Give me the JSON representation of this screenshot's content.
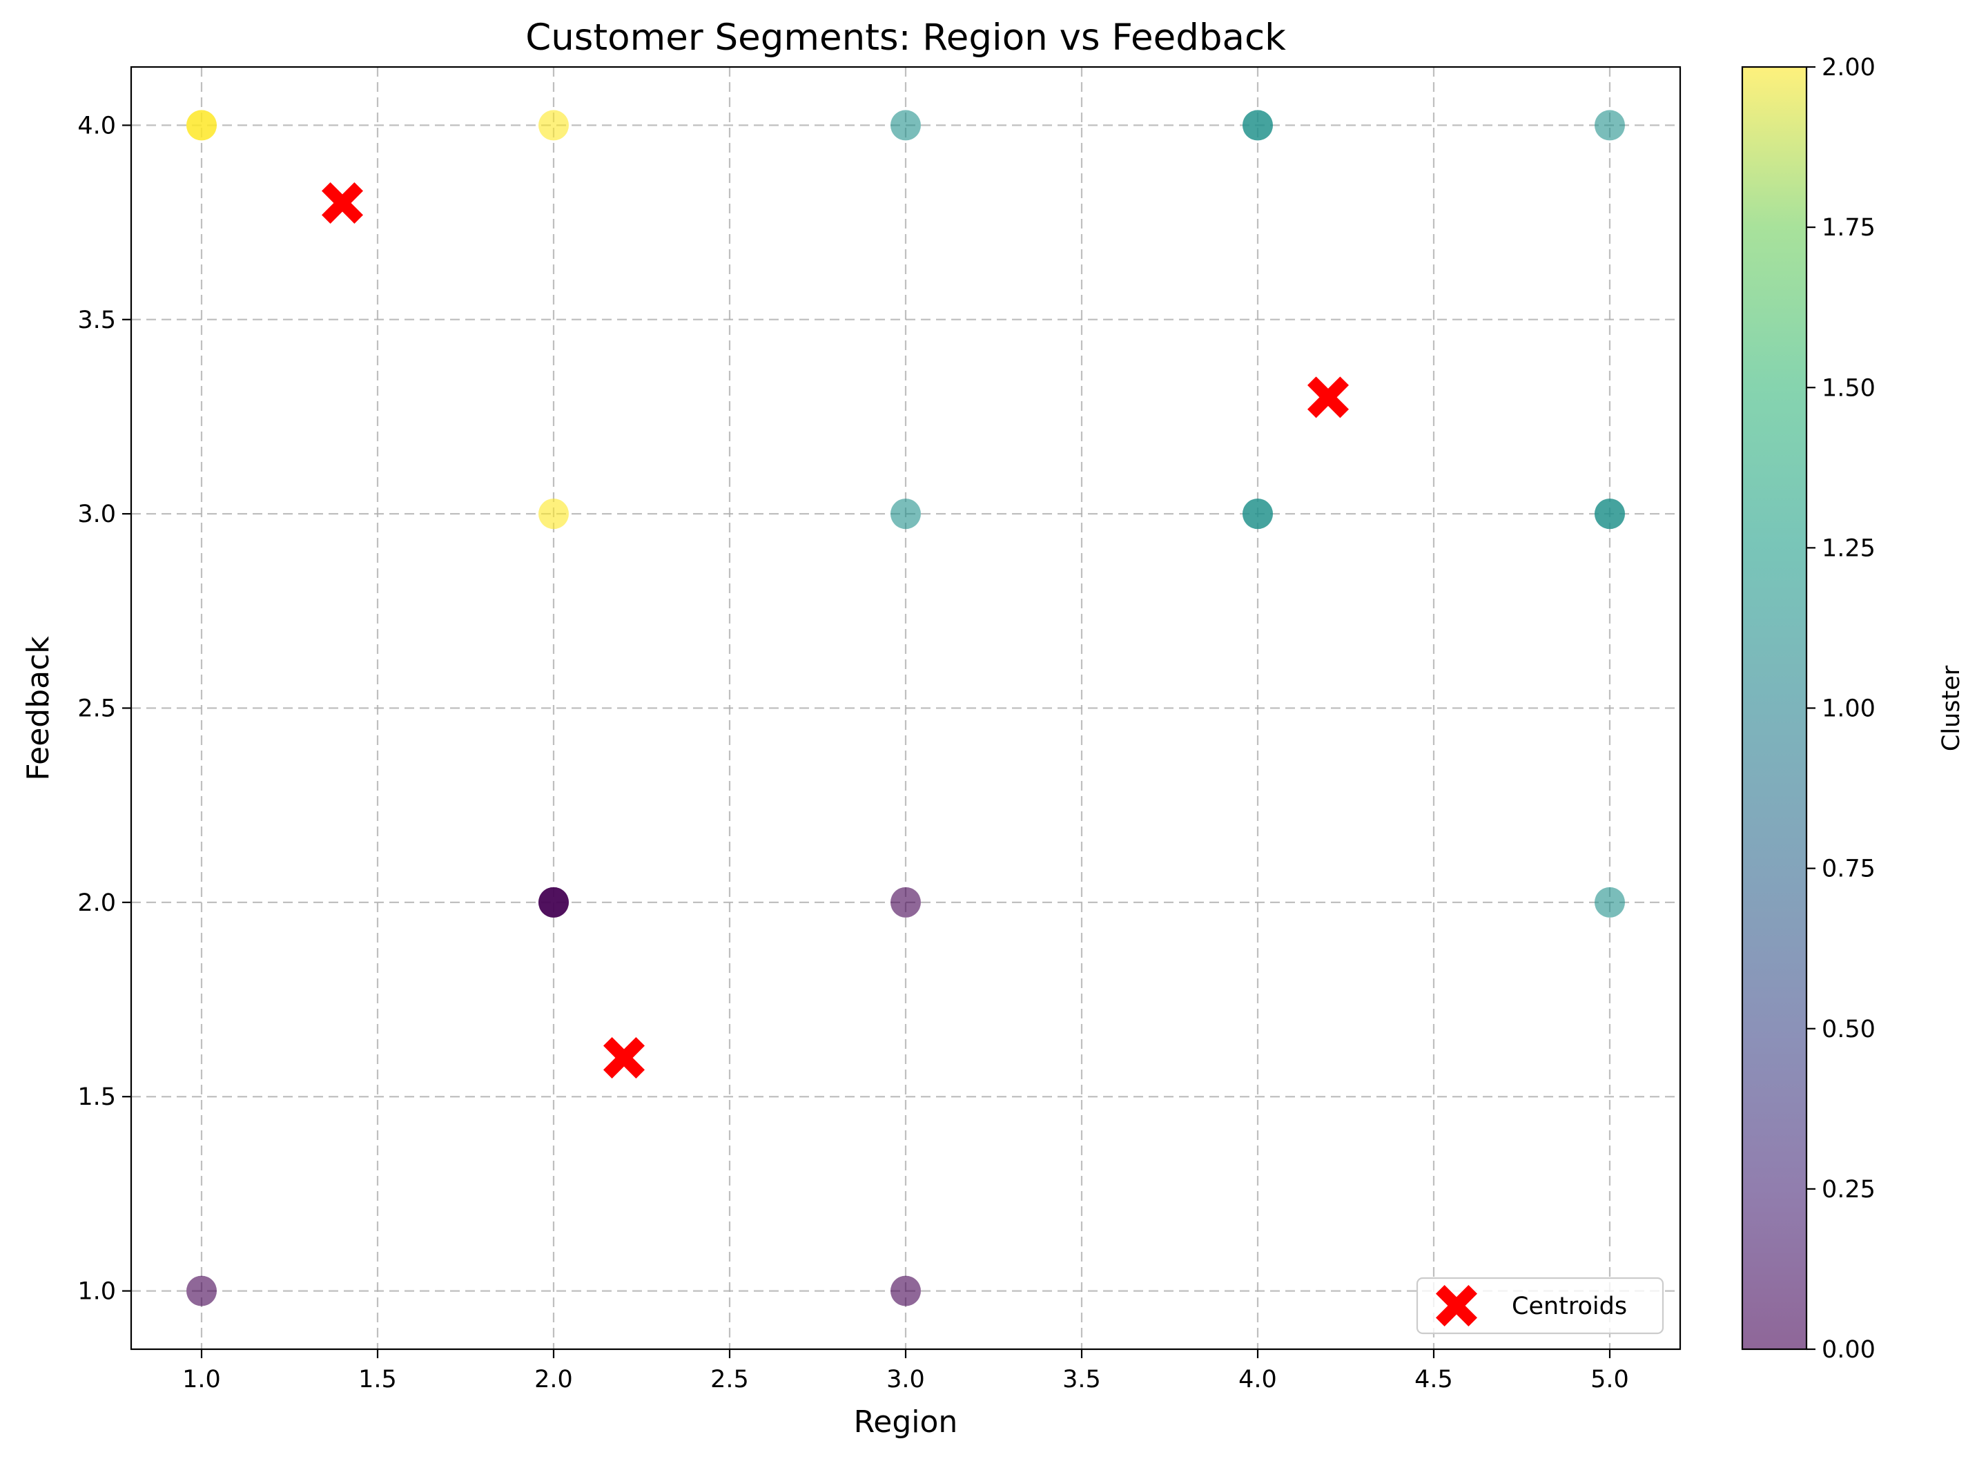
{
  "chart_data": {
    "type": "scatter",
    "title": "Customer Segments: Region vs Feedback",
    "xlabel": "Region",
    "ylabel": "Feedback",
    "xlim": [
      0.8,
      5.2
    ],
    "ylim": [
      0.85,
      4.15
    ],
    "x_ticks": [
      "1.0",
      "1.5",
      "2.0",
      "2.5",
      "3.0",
      "3.5",
      "4.0",
      "4.5",
      "5.0"
    ],
    "y_ticks": [
      "1.0",
      "1.5",
      "2.0",
      "2.5",
      "3.0",
      "3.5",
      "4.0"
    ],
    "grid": true,
    "colormap": "viridis",
    "points": [
      {
        "x": 1,
        "y": 4,
        "cluster": 2
      },
      {
        "x": 1,
        "y": 4,
        "cluster": 2
      },
      {
        "x": 2,
        "y": 4,
        "cluster": 2
      },
      {
        "x": 2,
        "y": 3,
        "cluster": 2
      },
      {
        "x": 1,
        "y": 1,
        "cluster": 0
      },
      {
        "x": 2,
        "y": 2,
        "cluster": 0
      },
      {
        "x": 2,
        "y": 2,
        "cluster": 0
      },
      {
        "x": 2,
        "y": 2,
        "cluster": 0
      },
      {
        "x": 3,
        "y": 2,
        "cluster": 0
      },
      {
        "x": 3,
        "y": 1,
        "cluster": 0
      },
      {
        "x": 3,
        "y": 4,
        "cluster": 1
      },
      {
        "x": 3,
        "y": 3,
        "cluster": 1
      },
      {
        "x": 4,
        "y": 4,
        "cluster": 1
      },
      {
        "x": 4,
        "y": 4,
        "cluster": 1
      },
      {
        "x": 4,
        "y": 3,
        "cluster": 1
      },
      {
        "x": 4,
        "y": 3,
        "cluster": 1
      },
      {
        "x": 5,
        "y": 4,
        "cluster": 1
      },
      {
        "x": 5,
        "y": 3,
        "cluster": 1
      },
      {
        "x": 5,
        "y": 3,
        "cluster": 1
      },
      {
        "x": 5,
        "y": 2,
        "cluster": 1
      }
    ],
    "centroids": [
      {
        "x": 1.4,
        "y": 3.8
      },
      {
        "x": 4.2,
        "y": 3.3
      },
      {
        "x": 2.2,
        "y": 1.6
      }
    ],
    "centroid_color": "#ff0000",
    "legend": {
      "entries": [
        "Centroids"
      ],
      "position": "lower-right"
    },
    "colorbar": {
      "label": "Cluster",
      "range": [
        0,
        2
      ],
      "ticks": [
        "0.00",
        "0.25",
        "0.50",
        "0.75",
        "1.00",
        "1.25",
        "1.50",
        "1.75",
        "2.00"
      ]
    },
    "cluster_colors": [
      "#440154",
      "#21918c",
      "#fde725"
    ]
  }
}
